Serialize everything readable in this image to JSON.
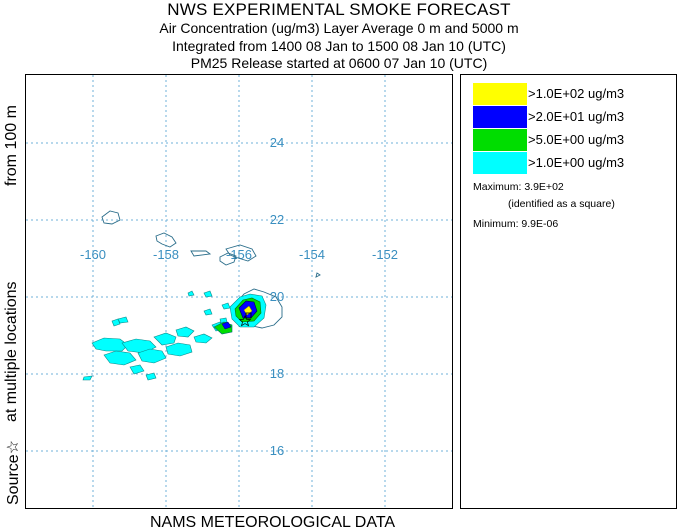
{
  "header": {
    "title": "NWS EXPERIMENTAL SMOKE FORECAST",
    "line1": "Air Concentration (ug/m3) Layer Average    0 m and  5000 m",
    "line2": "Integrated from 1400 08 Jan to 1500 08 Jan 10 (UTC)",
    "line3": "PM25 Release started at 0600 07 Jan 10 (UTC)"
  },
  "side_labels": {
    "from": "from   100 m",
    "locations": "at multiple locations",
    "source": "Source☆"
  },
  "footer": "NAMS METEOROLOGICAL DATA",
  "map": {
    "lon_labels": [
      "-160",
      "-158",
      "-156",
      "-154",
      "-152"
    ],
    "lat_labels": [
      "24",
      "22",
      "20",
      "18",
      "16"
    ]
  },
  "legend": {
    "entries": [
      {
        "label": ">1.0E+02 ug/m3",
        "color": "#ffff00"
      },
      {
        "label": ">2.0E+01 ug/m3",
        "color": "#0000ff"
      },
      {
        "label": ">5.0E+00 ug/m3",
        "color": "#00dd00"
      },
      {
        "label": ">1.0E+00 ug/m3",
        "color": "#00ffff"
      }
    ],
    "maximum": "Maximum: 3.9E+02",
    "identified": "(identified as a square)",
    "minimum": "Minimum: 9.9E-06"
  }
}
